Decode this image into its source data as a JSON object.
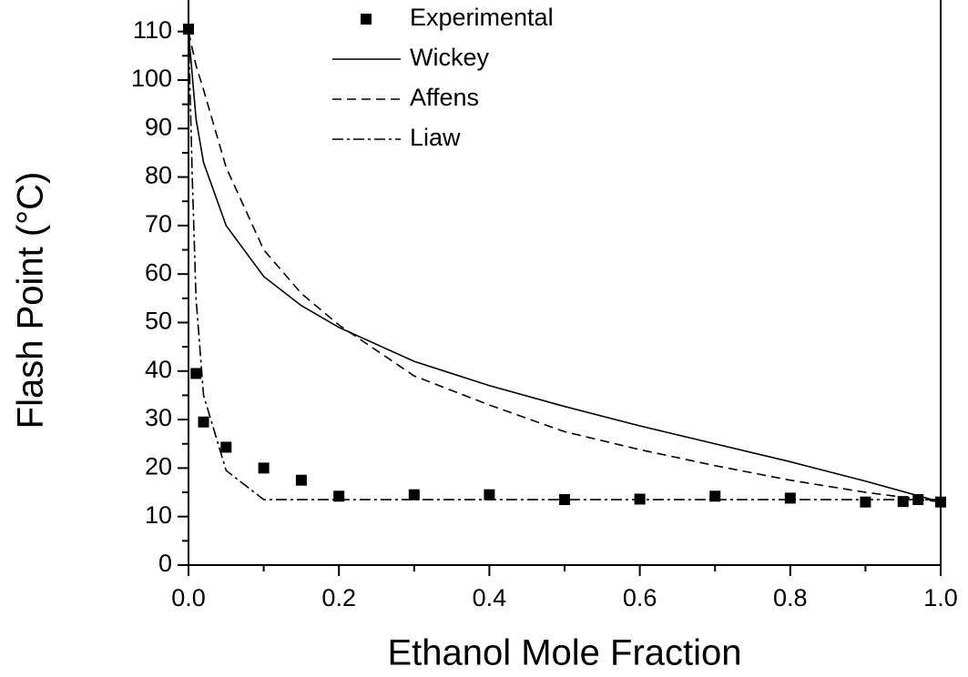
{
  "chart_data": {
    "type": "line",
    "xlabel": "Ethanol Mole Fraction",
    "ylabel": "Flash Point (°C)",
    "xlim": [
      0,
      1
    ],
    "ylim": [
      0,
      115
    ],
    "xticks": [
      {
        "value": 0,
        "label": "0.0"
      },
      0.2,
      0.4,
      0.6,
      0.8,
      {
        "value": 1,
        "label": "1.0"
      }
    ],
    "yticks": [
      0,
      10,
      20,
      30,
      40,
      50,
      60,
      70,
      80,
      90,
      100,
      110
    ],
    "minor_xticks": [
      0.1,
      0.3,
      0.5,
      0.7,
      0.9
    ],
    "minor_yticks": [
      5,
      15,
      25,
      35,
      45,
      55,
      65,
      75,
      85,
      95,
      105
    ],
    "legend": "top",
    "series": [
      {
        "name": "Experimental",
        "color": "#000000",
        "marker": "square",
        "line": "none",
        "x": [
          0,
          0.01,
          0.02,
          0.05,
          0.1,
          0.15,
          0.2,
          0.3,
          0.4,
          0.5,
          0.6,
          0.7,
          0.8,
          0.9,
          0.95,
          0.97,
          1.0
        ],
        "values": [
          110.5,
          39.5,
          29.5,
          24.3,
          20,
          17.5,
          14.2,
          14.5,
          14.5,
          13.5,
          13.6,
          14.2,
          13.8,
          13,
          13.1,
          13.5,
          13
        ]
      },
      {
        "name": "Wickey",
        "color": "#000000",
        "marker": "none",
        "line": "solid",
        "x": [
          0,
          0.01,
          0.02,
          0.05,
          0.1,
          0.15,
          0.2,
          0.3,
          0.4,
          0.5,
          0.6,
          0.7,
          0.8,
          0.9,
          1.0
        ],
        "values": [
          110,
          92,
          83,
          70,
          59.5,
          53.5,
          49,
          42,
          37,
          32.7,
          28.7,
          25,
          21.3,
          17.3,
          13
        ]
      },
      {
        "name": "Affens",
        "color": "#000000",
        "marker": "none",
        "line": "dash",
        "x": [
          0,
          0.01,
          0.02,
          0.05,
          0.1,
          0.15,
          0.2,
          0.3,
          0.4,
          0.5,
          0.6,
          0.7,
          0.8,
          0.9,
          1.0
        ],
        "values": [
          110,
          103,
          98,
          82,
          65,
          56,
          49.5,
          39,
          33,
          27.5,
          23.8,
          20.5,
          17.5,
          15,
          13
        ]
      },
      {
        "name": "Liaw",
        "color": "#000000",
        "marker": "none",
        "line": "dashdot",
        "x": [
          0,
          0.005,
          0.01,
          0.02,
          0.05,
          0.1,
          1.0
        ],
        "values": [
          110,
          80,
          55,
          35,
          19.5,
          13.5,
          13.5
        ]
      }
    ]
  }
}
